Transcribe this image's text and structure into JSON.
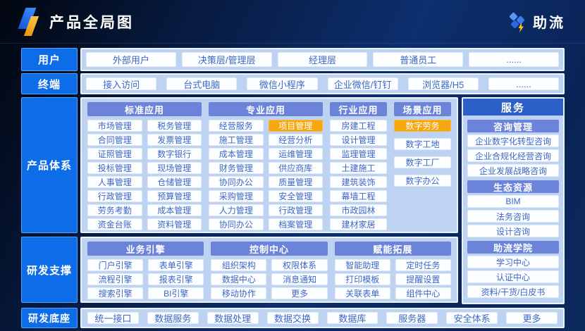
{
  "header": {
    "title": "产品全局图",
    "brand": "助流"
  },
  "highlighted": [
    "项目管理",
    "数字劳务"
  ],
  "rows": {
    "users": {
      "label": "用户",
      "items": [
        "外部用户",
        "决策层/管理层",
        "经理层",
        "普通员工",
        "......"
      ]
    },
    "terminals": {
      "label": "终端",
      "items": [
        "接入访问",
        "台式电脑",
        "微信小程序",
        "企业微信/钉钉",
        "浏览器/H5",
        "......"
      ]
    },
    "product": {
      "label": "产品体系",
      "groups": [
        {
          "title": "标准应用",
          "columns": 2,
          "items": [
            "市场管理",
            "税务管理",
            "合同管理",
            "发票管理",
            "证照管理",
            "数字银行",
            "投标管理",
            "现场管理",
            "人事管理",
            "仓储管理",
            "行政管理",
            "预算管理",
            "劳务考勤",
            "成本管理",
            "资金台账",
            "资料管理"
          ]
        },
        {
          "title": "专业应用",
          "columns": 2,
          "items": [
            "经营服务",
            "项目管理",
            "施工管理",
            "经营分析",
            "成本管理",
            "运维管理",
            "财务管理",
            "供应商库",
            "协同办公",
            "质量管理",
            "采购管理",
            "安全管理",
            "人力管理",
            "行政管理",
            "协同办公",
            "档案管理"
          ]
        },
        {
          "title": "行业应用",
          "columns": 1,
          "items": [
            "房建工程",
            "设计管理",
            "监理管理",
            "土建施工",
            "建筑装饰",
            "幕墙工程",
            "市政园林",
            "建材家居"
          ]
        },
        {
          "title": "场景应用",
          "columns": 1,
          "items": [
            "数字劳务",
            "数字工地",
            "数字工厂",
            "数字办公"
          ]
        }
      ]
    },
    "services": {
      "title": "服务",
      "sections": [
        {
          "title": "咨询管理",
          "items": [
            "企业数字化转型咨询",
            "企业合规化经营咨询",
            "企业发展战略咨询"
          ]
        },
        {
          "title": "生态资源",
          "items": [
            "BIM",
            "法务咨询",
            "设计咨询"
          ]
        },
        {
          "title": "助流学院",
          "items": [
            "学习中心",
            "认证中心",
            "资料/干货/白皮书"
          ]
        }
      ]
    },
    "rd_support": {
      "label": "研发支撑",
      "groups": [
        {
          "title": "业务引擎",
          "columns": 2,
          "items": [
            "门户引擎",
            "表单引擎",
            "流程引擎",
            "报表引擎",
            "搜索引擎",
            "BI引擎"
          ]
        },
        {
          "title": "控制中心",
          "columns": 2,
          "items": [
            "组织架构",
            "权限体系",
            "数据中心",
            "消息通知",
            "移动协作",
            "更多"
          ]
        },
        {
          "title": "赋能拓展",
          "columns": 2,
          "items": [
            "智能助理",
            "定时任务",
            "打印模板",
            "提醒设置",
            "关联表单",
            "组件中心"
          ]
        }
      ]
    },
    "rd_base": {
      "label": "研发底座",
      "items": [
        "统一接口",
        "数据服务",
        "数据处理",
        "数据交换",
        "数据库",
        "服务器",
        "安全体系",
        "更多"
      ]
    }
  },
  "colors": {
    "accent_blue": "#0d6ce8",
    "panel_bg": "#bdd3f1",
    "group_header": "#6c83da",
    "services_header": "#2d5fc8",
    "highlight_orange": "#f6a60f",
    "item_text": "#3a66c8"
  }
}
